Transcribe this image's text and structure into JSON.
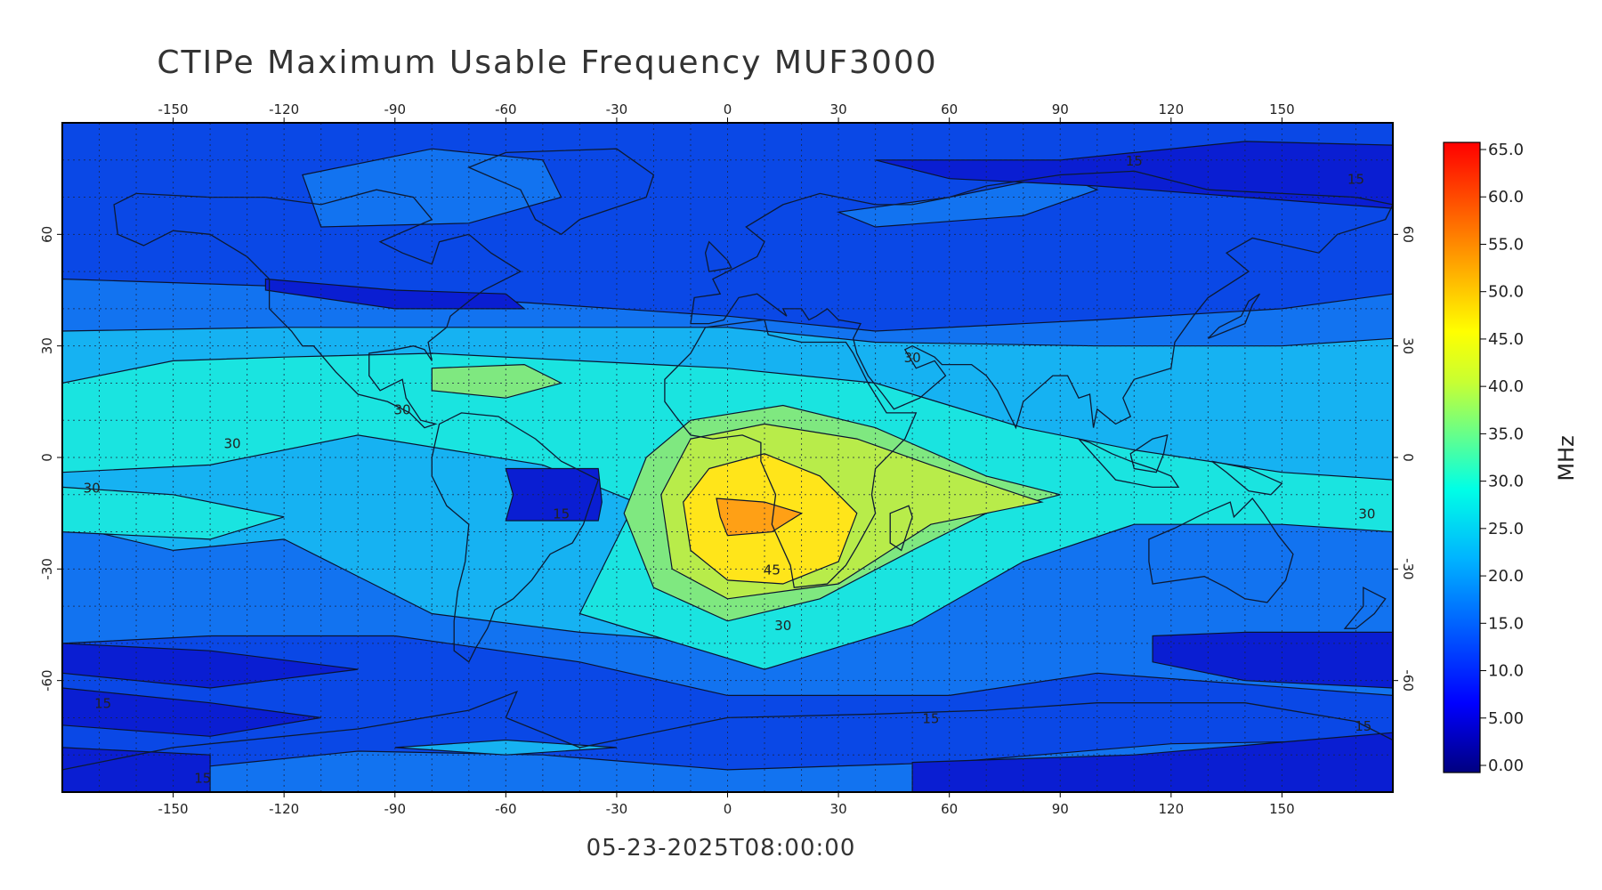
{
  "title": "CTIPe Maximum Usable Frequency MUF3000",
  "timestamp": "05-23-2025T08:00:00",
  "colorbar": {
    "unit": "MHz",
    "ticks": [
      "0.00",
      "5.00",
      "10.0",
      "15.0",
      "20.0",
      "25.0",
      "30.0",
      "35.0",
      "40.0",
      "45.0",
      "50.0",
      "55.0",
      "60.0",
      "65.0"
    ]
  },
  "axes": {
    "lon_ticks": [
      "-150",
      "-120",
      "-90",
      "-60",
      "-30",
      "0",
      "30",
      "60",
      "90",
      "120",
      "150"
    ],
    "lat_ticks": [
      "60",
      "30",
      "0",
      "-30",
      "-60"
    ]
  },
  "contour_labels": [
    {
      "text": "15",
      "lon": 110,
      "lat": 80
    },
    {
      "text": "15",
      "lon": 170,
      "lat": 75
    },
    {
      "text": "30",
      "lon": 50,
      "lat": 27
    },
    {
      "text": "30",
      "lon": -88,
      "lat": 13
    },
    {
      "text": "30",
      "lon": -134,
      "lat": 4
    },
    {
      "text": "30",
      "lon": -172,
      "lat": -8
    },
    {
      "text": "15",
      "lon": -45,
      "lat": -15
    },
    {
      "text": "45",
      "lon": 12,
      "lat": -30
    },
    {
      "text": "30",
      "lon": 15,
      "lat": -45
    },
    {
      "text": "30",
      "lon": 173,
      "lat": -15
    },
    {
      "text": "15",
      "lon": -169,
      "lat": -66
    },
    {
      "text": "15",
      "lon": 55,
      "lat": -70
    },
    {
      "text": "15",
      "lon": 172,
      "lat": -72
    },
    {
      "text": "15",
      "lon": -142,
      "lat": -86
    }
  ],
  "colors": {
    "background_band": "#0a48e6",
    "deep_band": "#0a1ed2",
    "band_16": "#1273f0",
    "band_22": "#16b2f2",
    "band_27": "#1ae4e0",
    "band_33": "#7fe880",
    "band_38": "#b8ec4a",
    "band_43": "#ffe51a",
    "band_50": "#ffa015"
  }
}
